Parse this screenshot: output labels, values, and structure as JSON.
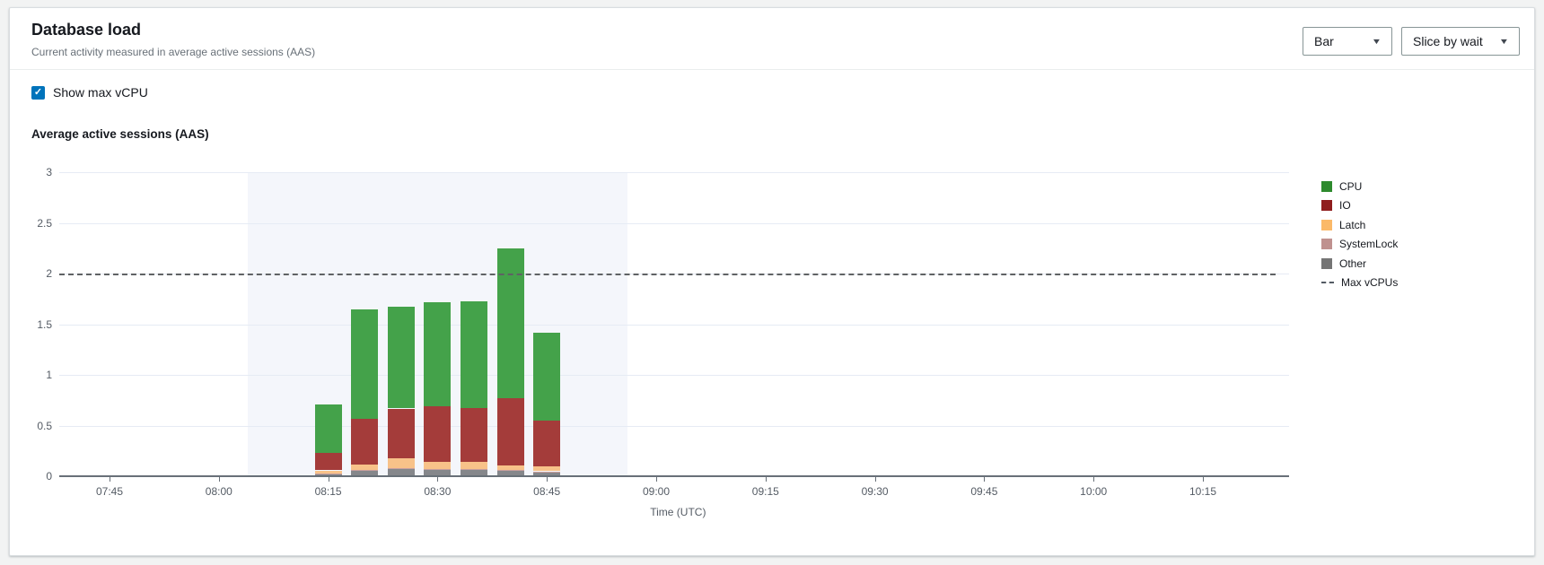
{
  "header": {
    "title": "Database load",
    "subtitle": "Current activity measured in average active sessions (AAS)"
  },
  "controls": {
    "chart_type_value": "Bar",
    "slice_by_value": "Slice by wait",
    "show_max_vcpu_label": "Show max vCPU",
    "show_max_vcpu_checked": true,
    "checkmark": "✓",
    "caret": "▼"
  },
  "chart_data": {
    "type": "bar",
    "stacked": true,
    "title": "Average active sessions (AAS)",
    "xlabel": "Time (UTC)",
    "ylabel": "",
    "ylim": [
      0,
      3
    ],
    "yticks": [
      0,
      0.5,
      1,
      1.5,
      2,
      2.5,
      3
    ],
    "x_axis_ticks": [
      "07:45",
      "08:00",
      "08:15",
      "08:30",
      "08:45",
      "09:00",
      "09:15",
      "09:30",
      "09:45",
      "10:00",
      "10:15"
    ],
    "grid": "horizontal",
    "legend_position": "right",
    "max_vcpus_line": 2,
    "highlight_region": {
      "start": "08:04",
      "end": "08:56"
    },
    "bar_interval_minutes": 5,
    "categories": [
      "08:15",
      "08:20",
      "08:25",
      "08:30",
      "08:35",
      "08:40",
      "08:45"
    ],
    "series": [
      {
        "name": "Other",
        "color": "#85878b",
        "values": [
          0.01,
          0.04,
          0.06,
          0.05,
          0.05,
          0.04,
          0.03
        ]
      },
      {
        "name": "SystemLock",
        "color": "#c9a09e",
        "values": [
          0.01,
          0.01,
          0.01,
          0.01,
          0.01,
          0.01,
          0.01
        ]
      },
      {
        "name": "Latch",
        "color": "#f8c289",
        "values": [
          0.03,
          0.06,
          0.1,
          0.07,
          0.07,
          0.05,
          0.05
        ]
      },
      {
        "name": "IO",
        "color": "#a43c3a",
        "values": [
          0.17,
          0.45,
          0.49,
          0.55,
          0.53,
          0.66,
          0.45
        ]
      },
      {
        "name": "CPU",
        "color": "#44a24a",
        "values": [
          0.48,
          1.08,
          1.0,
          1.03,
          1.05,
          1.48,
          0.87
        ]
      }
    ],
    "legend": [
      {
        "label": "CPU",
        "swatch": "box",
        "color": "#2d8a2d"
      },
      {
        "label": "IO",
        "swatch": "box",
        "color": "#8f1d1d"
      },
      {
        "label": "Latch",
        "swatch": "box",
        "color": "#fbb968"
      },
      {
        "label": "SystemLock",
        "swatch": "box",
        "color": "#bf918f"
      },
      {
        "label": "Other",
        "swatch": "box",
        "color": "#757575"
      },
      {
        "label": "Max vCPUs",
        "swatch": "dash",
        "color": "#545b64"
      }
    ]
  }
}
